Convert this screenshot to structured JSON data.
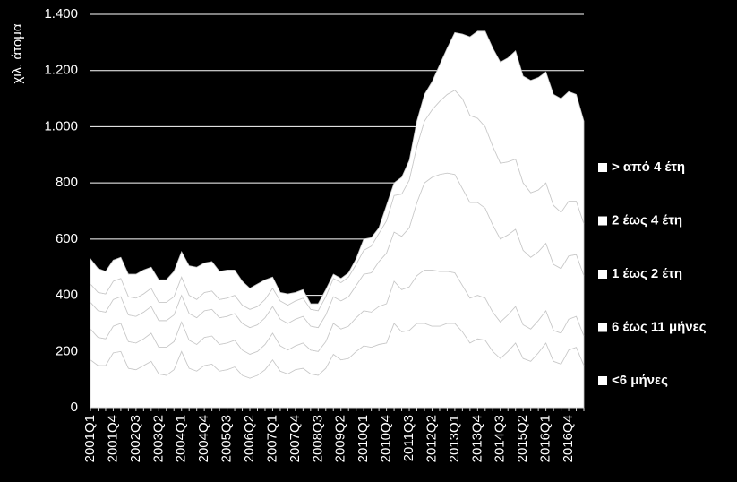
{
  "chart_data": {
    "type": "stacked_area",
    "y_label": "χιλ. άτομα",
    "categories": [
      "2001Q1",
      null,
      null,
      "2001Q4",
      null,
      null,
      "2002Q3",
      null,
      null,
      "2003Q2",
      null,
      null,
      "2004Q1",
      null,
      null,
      "2004Q4",
      null,
      null,
      "2005Q3",
      null,
      null,
      "2006Q2",
      null,
      null,
      "2007Q1",
      null,
      null,
      "2007Q4",
      null,
      null,
      "2008Q3",
      null,
      null,
      "2009Q2",
      null,
      null,
      "2010Q1",
      null,
      null,
      "2010Q4",
      null,
      null,
      "2011Q3",
      null,
      null,
      "2012Q2",
      null,
      null,
      "2013Q1",
      null,
      null,
      "2013Q4",
      null,
      null,
      "2014Q3",
      null,
      null,
      "2015Q2",
      null,
      null,
      "2016Q1",
      null,
      null,
      "2016Q4",
      null,
      null
    ],
    "series": [
      {
        "name": "<6 μήνες",
        "color": "#ffffff",
        "values": [
          170,
          150,
          150,
          195,
          200,
          140,
          135,
          150,
          165,
          120,
          115,
          135,
          200,
          140,
          130,
          150,
          155,
          130,
          135,
          145,
          115,
          105,
          115,
          135,
          170,
          130,
          120,
          135,
          140,
          120,
          115,
          140,
          190,
          170,
          175,
          200,
          220,
          215,
          225,
          230,
          300,
          270,
          275,
          300,
          300,
          290,
          290,
          300,
          300,
          270,
          230,
          245,
          240,
          200,
          175,
          200,
          230,
          175,
          165,
          195,
          230,
          165,
          155,
          205,
          215,
          150
        ]
      },
      {
        "name": "6 έως 11 μήνες",
        "color": "#ffffff",
        "values": [
          110,
          100,
          95,
          95,
          100,
          95,
          95,
          95,
          100,
          95,
          100,
          100,
          105,
          100,
          95,
          100,
          100,
          95,
          95,
          95,
          90,
          85,
          85,
          90,
          95,
          90,
          85,
          85,
          90,
          85,
          85,
          95,
          110,
          110,
          115,
          120,
          125,
          125,
          135,
          140,
          150,
          150,
          155,
          170,
          190,
          200,
          195,
          185,
          180,
          165,
          160,
          155,
          150,
          140,
          130,
          130,
          130,
          120,
          115,
          115,
          115,
          110,
          110,
          110,
          110,
          105
        ]
      },
      {
        "name": "1 έως 2 έτη",
        "color": "#ffffff",
        "values": [
          95,
          95,
          95,
          95,
          95,
          95,
          95,
          95,
          95,
          95,
          95,
          95,
          95,
          95,
          95,
          95,
          95,
          95,
          95,
          95,
          95,
          95,
          95,
          95,
          95,
          95,
          95,
          95,
          95,
          85,
          85,
          95,
          95,
          100,
          105,
          115,
          130,
          140,
          160,
          180,
          175,
          190,
          210,
          260,
          310,
          330,
          345,
          350,
          350,
          345,
          340,
          330,
          320,
          310,
          295,
          285,
          275,
          265,
          255,
          245,
          240,
          235,
          230,
          225,
          220,
          215
        ]
      },
      {
        "name": "2 έως 4 έτη",
        "color": "#ffffff",
        "values": [
          65,
          65,
          65,
          65,
          65,
          65,
          65,
          65,
          65,
          65,
          65,
          65,
          65,
          65,
          65,
          65,
          65,
          65,
          65,
          65,
          65,
          65,
          65,
          65,
          65,
          65,
          65,
          65,
          65,
          60,
          60,
          65,
          65,
          65,
          70,
          75,
          85,
          95,
          100,
          115,
          130,
          150,
          170,
          200,
          220,
          240,
          260,
          280,
          300,
          320,
          310,
          300,
          290,
          280,
          270,
          260,
          250,
          240,
          230,
          220,
          215,
          210,
          200,
          195,
          190,
          185
        ]
      },
      {
        "name": "> από 4 έτη",
        "color": "#ffffff",
        "values": [
          90,
          85,
          80,
          75,
          75,
          80,
          85,
          85,
          75,
          80,
          80,
          90,
          90,
          105,
          115,
          105,
          105,
          100,
          100,
          90,
          85,
          75,
          80,
          70,
          40,
          30,
          40,
          30,
          30,
          20,
          25,
          25,
          15,
          15,
          15,
          20,
          40,
          30,
          20,
          55,
          45,
          60,
          70,
          90,
          95,
          100,
          130,
          165,
          205,
          230,
          280,
          310,
          340,
          350,
          360,
          370,
          385,
          380,
          400,
          400,
          395,
          395,
          405,
          390,
          380,
          365
        ]
      }
    ],
    "ylim": [
      0,
      1400
    ],
    "yticks": [
      0,
      200,
      400,
      600,
      800,
      {
        "value": 1000,
        "label": "1.000"
      },
      {
        "value": 1200,
        "label": "1.200"
      },
      {
        "value": 1400,
        "label": "1.400"
      }
    ],
    "grid": true,
    "legend": "right"
  }
}
